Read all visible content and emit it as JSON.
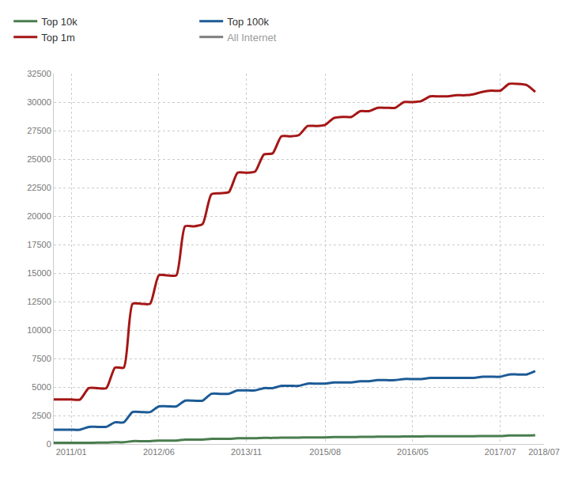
{
  "chart_data": {
    "type": "line",
    "categories": [
      null,
      null,
      "2011/01",
      null,
      null,
      null,
      null,
      null,
      null,
      null,
      null,
      null,
      "2012/06",
      null,
      null,
      null,
      null,
      null,
      null,
      null,
      null,
      null,
      "2013/11",
      null,
      null,
      null,
      null,
      null,
      null,
      null,
      null,
      "2015/08",
      null,
      null,
      null,
      null,
      null,
      null,
      null,
      null,
      null,
      "2016/05",
      null,
      null,
      null,
      null,
      null,
      null,
      null,
      null,
      null,
      "2017/07",
      null,
      null,
      null,
      null,
      "2018/07"
    ],
    "series": [
      {
        "name": "Top 10k",
        "color": "#4a7d4f",
        "values": [
          100,
          100,
          100,
          100,
          100,
          120,
          120,
          150,
          150,
          250,
          250,
          250,
          300,
          300,
          300,
          380,
          380,
          380,
          450,
          450,
          450,
          500,
          500,
          500,
          530,
          530,
          560,
          560,
          560,
          580,
          580,
          580,
          600,
          600,
          600,
          620,
          620,
          640,
          640,
          640,
          660,
          660,
          660,
          680,
          680,
          680,
          680,
          680,
          680,
          700,
          700,
          700,
          740,
          740,
          740,
          760,
          null
        ]
      },
      {
        "name": "Top 100k",
        "color": "#1d5b96",
        "values": [
          1250,
          1250,
          1250,
          1250,
          1500,
          1500,
          1500,
          1900,
          1900,
          2800,
          2800,
          2800,
          3300,
          3300,
          3300,
          3800,
          3800,
          3800,
          4400,
          4400,
          4400,
          4700,
          4700,
          4700,
          4900,
          4900,
          5100,
          5100,
          5100,
          5300,
          5300,
          5300,
          5400,
          5400,
          5400,
          5500,
          5500,
          5600,
          5600,
          5600,
          5700,
          5700,
          5700,
          5800,
          5800,
          5800,
          5800,
          5800,
          5800,
          5900,
          5900,
          5900,
          6100,
          6100,
          6100,
          6400,
          null
        ]
      },
      {
        "name": "Top 1m",
        "color": "#a51616",
        "values": [
          3900,
          3900,
          3900,
          3900,
          4900,
          4900,
          4900,
          6700,
          6700,
          12300,
          12300,
          12300,
          14800,
          14800,
          14800,
          19100,
          19100,
          19300,
          21900,
          22000,
          22100,
          23800,
          23800,
          23900,
          25400,
          25500,
          27000,
          27000,
          27100,
          27900,
          27900,
          28000,
          28600,
          28700,
          28700,
          29200,
          29200,
          29500,
          29500,
          29500,
          30000,
          30000,
          30100,
          30500,
          30500,
          30500,
          30600,
          30600,
          30700,
          30900,
          31000,
          31000,
          31600,
          31600,
          31500,
          30900,
          null
        ]
      },
      {
        "name": "All Internet",
        "color": "#000000",
        "values": [
          null,
          null,
          null,
          null,
          null,
          null,
          null,
          null,
          null,
          null,
          null,
          null,
          null,
          null,
          null,
          null,
          null,
          null,
          null,
          null,
          null,
          null,
          null,
          null,
          null,
          null,
          null,
          null,
          null,
          null,
          null,
          null,
          null,
          null,
          null,
          null,
          null,
          null,
          null,
          null,
          null,
          null,
          null,
          null,
          null,
          null,
          null,
          null,
          null,
          null,
          null,
          null,
          null,
          null,
          null,
          null,
          null
        ]
      }
    ],
    "ylim": [
      0,
      32500
    ],
    "yticks": [
      0,
      2500,
      5000,
      7500,
      10000,
      12500,
      15000,
      17500,
      20000,
      22500,
      25000,
      27500,
      30000,
      32500
    ],
    "grid": true,
    "legend": "top"
  }
}
